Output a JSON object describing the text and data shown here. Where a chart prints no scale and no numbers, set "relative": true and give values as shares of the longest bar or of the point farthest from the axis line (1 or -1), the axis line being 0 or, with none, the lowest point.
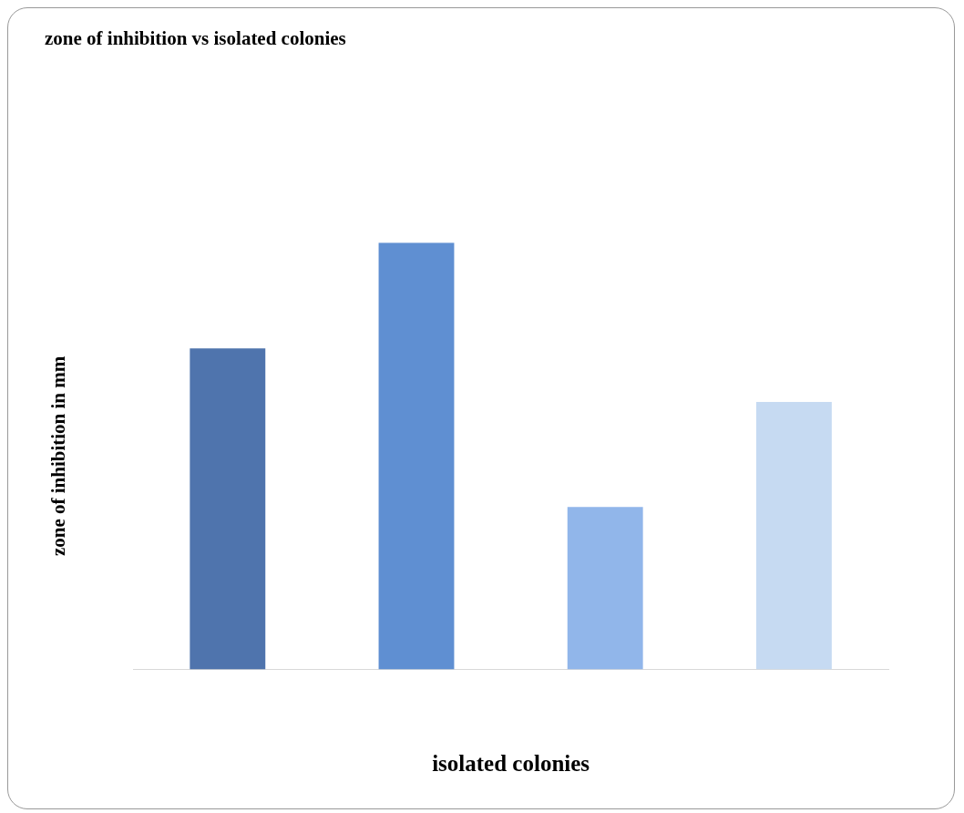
{
  "chart_data": {
    "type": "bar",
    "title": "zone of inhibition vs isolated colonies",
    "xlabel": "isolated colonies",
    "ylabel": "zone of inhibition in mm",
    "categories": [
      null,
      null,
      null,
      null
    ],
    "values": [
      0.752,
      1,
      0.381,
      0.627
    ],
    "colors": [
      "#4f74ad",
      "#5f8fd2",
      "#91b6ea",
      "#c6daf2"
    ],
    "relative": true,
    "legend": false,
    "grid": false
  }
}
